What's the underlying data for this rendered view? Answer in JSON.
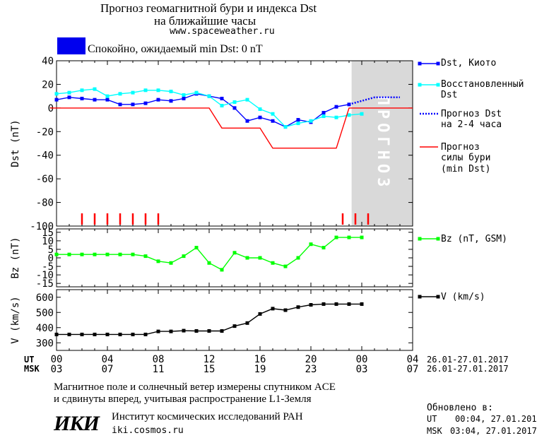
{
  "header": {
    "title_line1": "Прогноз геомагнитной бури и индекса Dst",
    "title_line2": "на ближайшие часы",
    "site": "www.spaceweather.ru"
  },
  "status": {
    "text": "Спокойно, ожидаемый min Dst: 0 nT",
    "color": "#0000ee"
  },
  "legend": {
    "dst_kyoto": "Dst, Киото",
    "dst_restored_1": "Восстановленный",
    "dst_restored_2": "Dst",
    "forecast_1": "Прогноз Dst",
    "forecast_2": "на 2-4 часа",
    "storm_1": "Прогноз",
    "storm_2": "силы бури",
    "storm_3": "(min Dst)",
    "bz": "Bz (nT, GSM)",
    "v": "V (km/s)"
  },
  "time_axis": {
    "ut_label": "UT",
    "msk_label": "MSK",
    "ut_ticks": [
      "00",
      "04",
      "08",
      "12",
      "16",
      "20",
      "00",
      "04"
    ],
    "msk_ticks": [
      "03",
      "07",
      "11",
      "15",
      "19",
      "23",
      "03",
      "07"
    ],
    "date_range_ut": "26.01-27.01.2017",
    "date_range_msk": "26.01-27.01.2017"
  },
  "footer": {
    "line1": "Магнитное поле и солнечный ветер измерены спутником ACE",
    "line2": "и сдвинуты вперед, учитывая распространение L1-Земля",
    "logo": "ИКИ",
    "institute": "Институт космических исследований РАН",
    "institute_site": "iki.cosmos.ru",
    "updated_label": "Обновлено в:",
    "updated_ut_label": "UT",
    "updated_ut": "00:04, 27.01.2017",
    "updated_msk_label": "MSK",
    "updated_msk": "03:04, 27.01.2017"
  },
  "chart_data": [
    {
      "type": "line",
      "ylabel": "Dst (nT)",
      "ylim": [
        -100,
        40
      ],
      "yticks": [
        40,
        20,
        0,
        -20,
        -40,
        -60,
        -80,
        -100
      ],
      "xlim_hours": [
        0,
        28
      ],
      "forecast_zone": {
        "start": 23.2,
        "end": 28,
        "label": "ПРОГНОЗ",
        "color": "#d9d9d9"
      },
      "series": [
        {
          "name": "Dst, Киото",
          "color": "#0000ff",
          "marker": "square",
          "x": [
            0,
            1,
            2,
            3,
            4,
            5,
            6,
            7,
            8,
            9,
            10,
            11,
            12,
            13,
            14,
            15,
            16,
            17,
            18,
            19,
            20,
            21,
            22,
            23
          ],
          "y": [
            7,
            9,
            8,
            7,
            7,
            3,
            3,
            4,
            7,
            6,
            8,
            12,
            10,
            8,
            0,
            -11,
            -8,
            -11,
            -16,
            -10,
            -12,
            -4,
            1,
            3
          ]
        },
        {
          "name": "Восстановленный Dst",
          "color": "#00ffff",
          "marker": "square",
          "x": [
            0,
            1,
            2,
            3,
            4,
            5,
            6,
            7,
            8,
            9,
            10,
            11,
            12,
            13,
            14,
            15,
            16,
            17,
            18,
            19,
            20,
            21,
            22,
            23,
            24
          ],
          "y": [
            12,
            13,
            15,
            16,
            10,
            12,
            13,
            15,
            15,
            14,
            11,
            13,
            10,
            2,
            5,
            7,
            -1,
            -5,
            -16,
            -13,
            -11,
            -7,
            -8,
            -6,
            -5
          ]
        },
        {
          "name": "Прогноз Dst на 2-4 часа",
          "color": "#0000ff",
          "style": "dotted",
          "x": [
            23,
            24,
            25,
            26,
            27
          ],
          "y": [
            3,
            6,
            9,
            9,
            9
          ]
        },
        {
          "name": "Прогноз силы бури (min Dst)",
          "color": "#ff0000",
          "style": "step",
          "x": [
            -0.5,
            12,
            13,
            16,
            17,
            22,
            23,
            28
          ],
          "y": [
            0,
            0,
            -17,
            -17,
            -34,
            -34,
            0,
            0
          ]
        }
      ],
      "storm_ticks_hours": [
        2,
        3,
        4,
        5,
        6,
        7,
        8,
        22.5,
        23.5,
        24.5
      ],
      "storm_ticks_color": "#ff0000"
    },
    {
      "type": "line",
      "ylabel": "Bz (nT)",
      "ylim": [
        -17,
        17
      ],
      "yticks": [
        15,
        10,
        5,
        0,
        -5,
        -10,
        -15
      ],
      "series": [
        {
          "name": "Bz (nT, GSM)",
          "color": "#00ff00",
          "marker": "square",
          "x": [
            0,
            1,
            2,
            3,
            4,
            5,
            6,
            7,
            8,
            9,
            10,
            11,
            12,
            13,
            14,
            15,
            16,
            17,
            18,
            19,
            20,
            21,
            22,
            23,
            24
          ],
          "y": [
            2,
            2,
            2,
            2,
            2,
            2,
            2,
            1,
            -2,
            -3,
            1,
            6,
            -3,
            -7,
            3,
            0,
            0,
            -3,
            -5,
            0,
            8,
            6,
            12,
            12,
            12
          ]
        }
      ]
    },
    {
      "type": "line",
      "ylabel": "V (km/s)",
      "ylim": [
        250,
        650
      ],
      "yticks": [
        600,
        500,
        400,
        300
      ],
      "series": [
        {
          "name": "V (km/s)",
          "color": "#000000",
          "marker": "square",
          "x": [
            0,
            1,
            2,
            3,
            4,
            5,
            6,
            7,
            8,
            9,
            10,
            11,
            12,
            13,
            14,
            15,
            16,
            17,
            18,
            19,
            20,
            21,
            22,
            23,
            24
          ],
          "y": [
            355,
            355,
            355,
            355,
            355,
            355,
            355,
            355,
            375,
            375,
            380,
            378,
            378,
            378,
            410,
            430,
            490,
            525,
            515,
            535,
            550,
            555,
            555,
            555,
            555
          ]
        }
      ]
    }
  ]
}
